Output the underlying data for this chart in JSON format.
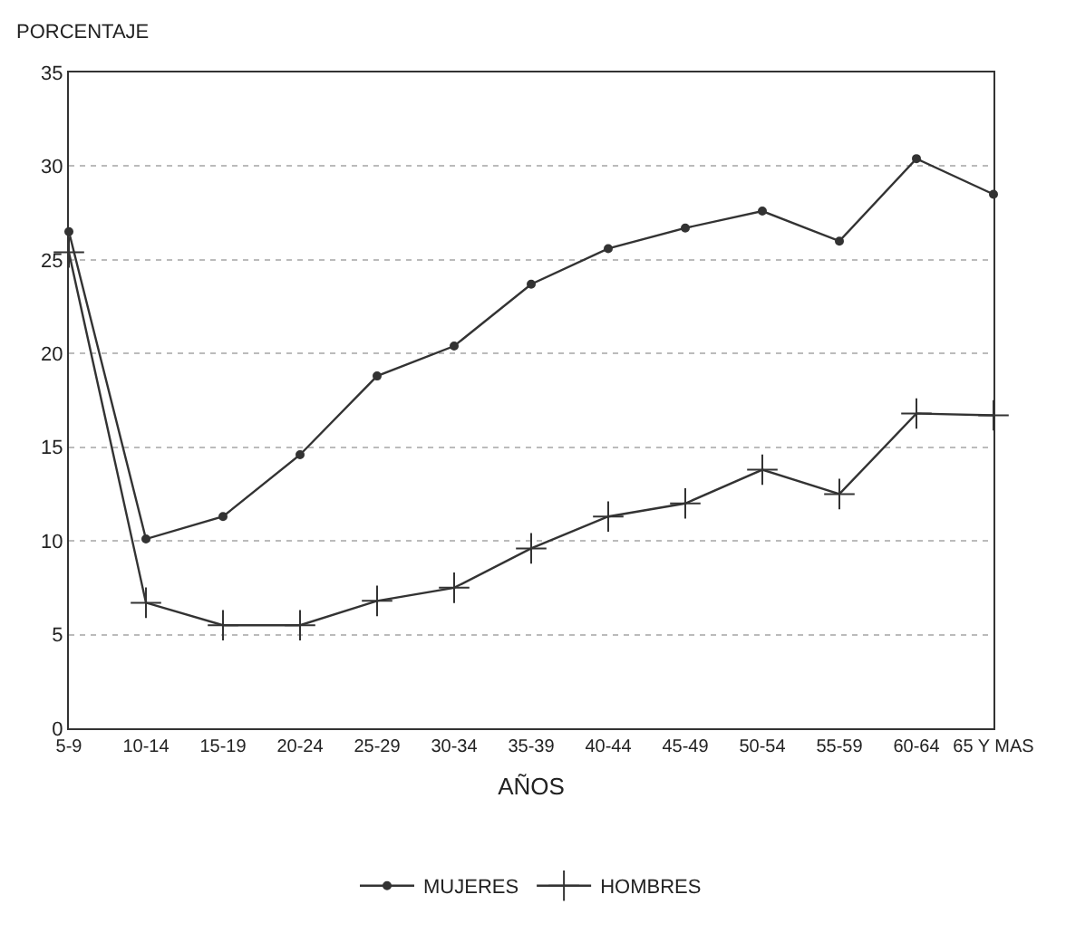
{
  "chart_data": {
    "type": "line",
    "ylabel": "PORCENTAJE",
    "xlabel": "AÑOS",
    "categories": [
      "5-9",
      "10-14",
      "15-19",
      "20-24",
      "25-29",
      "30-34",
      "35-39",
      "40-44",
      "45-49",
      "50-54",
      "55-59",
      "60-64",
      "65 Y MAS"
    ],
    "series": [
      {
        "name": "MUJERES",
        "color": "#333333",
        "marker": "circle",
        "values": [
          26.5,
          10.1,
          11.3,
          14.6,
          18.8,
          20.4,
          23.7,
          25.6,
          26.7,
          27.6,
          26.0,
          30.4,
          28.5
        ]
      },
      {
        "name": "HOMBRES",
        "color": "#333333",
        "marker": "cross",
        "values": [
          25.4,
          6.7,
          5.5,
          5.5,
          6.8,
          7.5,
          9.6,
          11.3,
          12.0,
          13.8,
          12.5,
          16.8,
          16.7
        ]
      }
    ],
    "ylim": [
      0,
      35
    ],
    "yticks": [
      0,
      5,
      10,
      15,
      20,
      25,
      30,
      35
    ],
    "grid": "y",
    "legend": "bottom",
    "line_style": "solid"
  }
}
